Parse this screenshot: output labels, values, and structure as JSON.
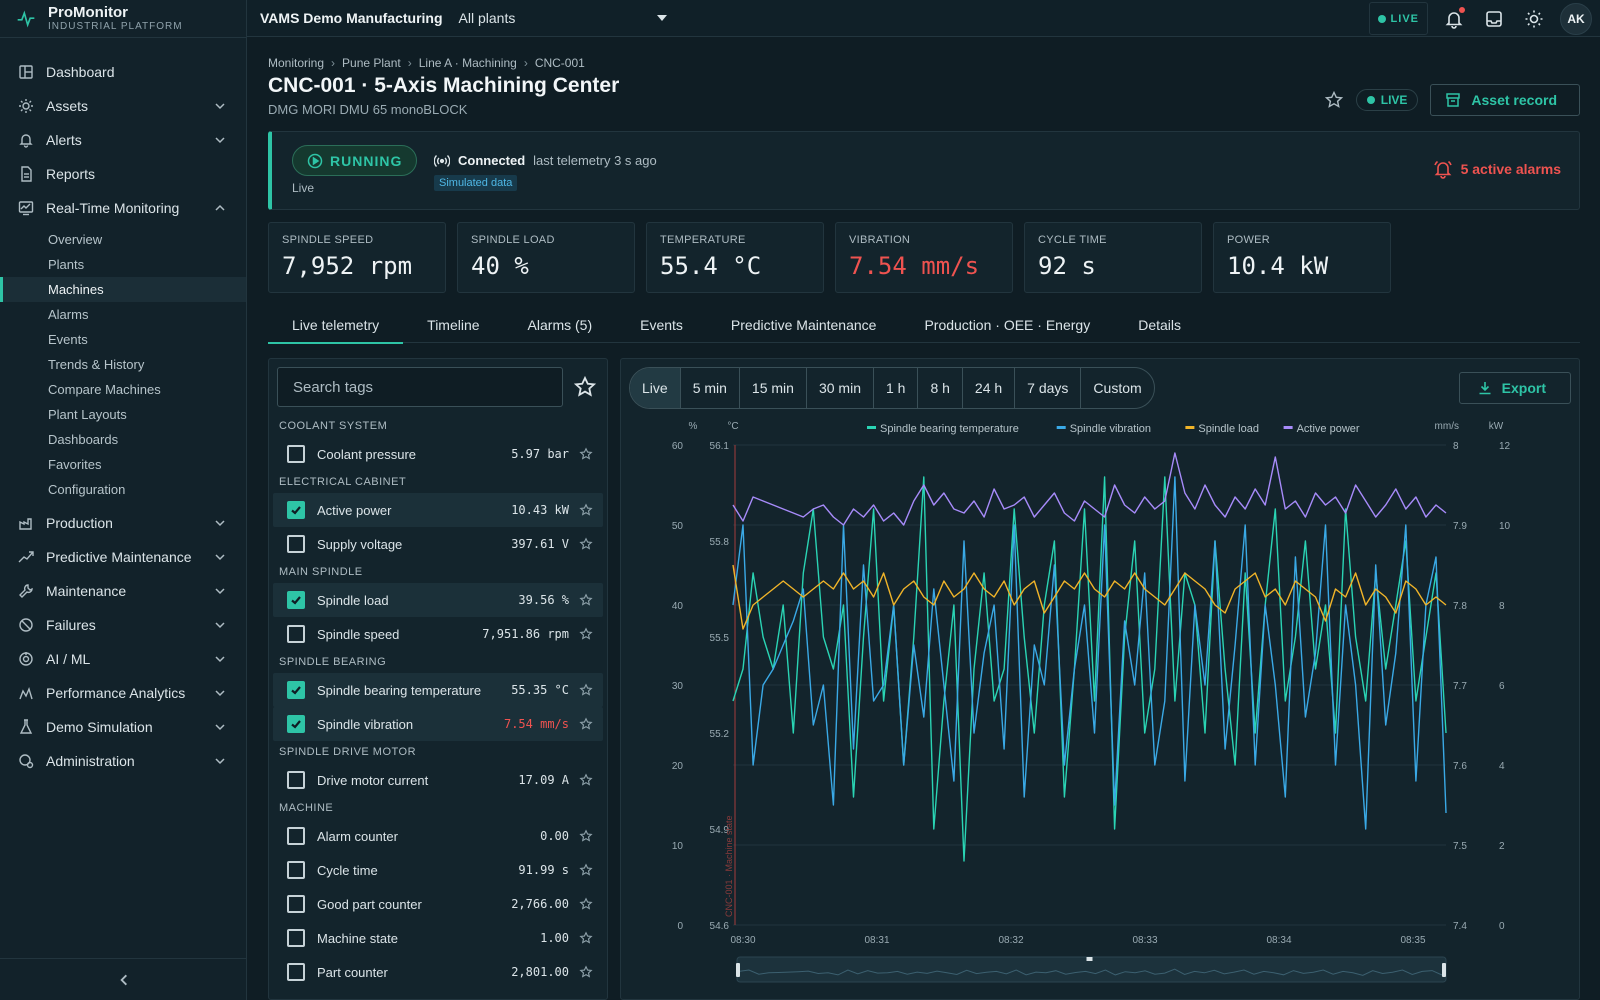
{
  "brand": {
    "title": "ProMonitor",
    "subtitle": "INDUSTRIAL PLATFORM"
  },
  "nav": [
    {
      "label": "Dashboard",
      "icon": "dashboard-icon",
      "chevron": false
    },
    {
      "label": "Assets",
      "icon": "assets-icon",
      "chevron": true
    },
    {
      "label": "Alerts",
      "icon": "bell-icon",
      "chevron": true
    },
    {
      "label": "Reports",
      "icon": "report-icon",
      "chevron": false
    },
    {
      "label": "Real-Time Monitoring",
      "icon": "monitor-icon",
      "chevron": true,
      "expanded": true
    }
  ],
  "subnav": [
    {
      "label": "Overview",
      "active": false
    },
    {
      "label": "Plants",
      "active": false
    },
    {
      "label": "Machines",
      "active": true
    },
    {
      "label": "Alarms",
      "active": false
    },
    {
      "label": "Events",
      "active": false
    },
    {
      "label": "Trends & History",
      "active": false
    },
    {
      "label": "Compare Machines",
      "active": false
    },
    {
      "label": "Plant Layouts",
      "active": false
    },
    {
      "label": "Dashboards",
      "active": false
    },
    {
      "label": "Favorites",
      "active": false
    },
    {
      "label": "Configuration",
      "active": false
    }
  ],
  "nav_bottom": [
    {
      "label": "Production",
      "icon": "production-icon"
    },
    {
      "label": "Predictive Maintenance",
      "icon": "trend-icon"
    },
    {
      "label": "Maintenance",
      "icon": "wrench-icon"
    },
    {
      "label": "Failures",
      "icon": "failure-icon"
    },
    {
      "label": "AI / ML",
      "icon": "ai-icon"
    },
    {
      "label": "Performance Analytics",
      "icon": "analytics-icon"
    },
    {
      "label": "Demo Simulation",
      "icon": "flask-icon"
    },
    {
      "label": "Administration",
      "icon": "admin-icon"
    }
  ],
  "topbar": {
    "org": "VAMS Demo Manufacturing",
    "plant": "All plants",
    "live": "LIVE",
    "avatar": "AK"
  },
  "breadcrumb": [
    "Monitoring",
    "Pune Plant",
    "Line A · Machining",
    "CNC-001"
  ],
  "page": {
    "title": "CNC-001 · 5-Axis Machining Center",
    "subtitle": "DMG MORI DMU 65 monoBLOCK",
    "live": "LIVE",
    "asset_button": "Asset record"
  },
  "status": {
    "state": "RUNNING",
    "mode": "Live",
    "connection": "Connected",
    "telemetry": "last telemetry 3 s ago",
    "sim": "Simulated data",
    "alarms": "5 active alarms"
  },
  "kpis": [
    {
      "label": "SPINDLE SPEED",
      "value": "7,952 rpm",
      "alert": false
    },
    {
      "label": "SPINDLE LOAD",
      "value": "40 %",
      "alert": false
    },
    {
      "label": "TEMPERATURE",
      "value": "55.4 °C",
      "alert": false
    },
    {
      "label": "VIBRATION",
      "value": "7.54 mm/s",
      "alert": true
    },
    {
      "label": "CYCLE TIME",
      "value": "92 s",
      "alert": false
    },
    {
      "label": "POWER",
      "value": "10.4 kW",
      "alert": false
    }
  ],
  "tabs": [
    {
      "label": "Live telemetry",
      "active": true
    },
    {
      "label": "Timeline"
    },
    {
      "label": "Alarms (5)"
    },
    {
      "label": "Events"
    },
    {
      "label": "Predictive Maintenance"
    },
    {
      "label": "Production · OEE · Energy"
    },
    {
      "label": "Details"
    }
  ],
  "search": {
    "placeholder": "Search tags"
  },
  "tag_groups": [
    {
      "title": "COOLANT SYSTEM",
      "tags": [
        {
          "name": "Coolant pressure",
          "value": "5.97 bar",
          "checked": false
        }
      ]
    },
    {
      "title": "ELECTRICAL CABINET",
      "tags": [
        {
          "name": "Active power",
          "value": "10.43 kW",
          "checked": true
        },
        {
          "name": "Supply voltage",
          "value": "397.61 V",
          "checked": false
        }
      ]
    },
    {
      "title": "MAIN SPINDLE",
      "tags": [
        {
          "name": "Spindle load",
          "value": "39.56 %",
          "checked": true
        },
        {
          "name": "Spindle speed",
          "value": "7,951.86 rpm",
          "checked": false
        }
      ]
    },
    {
      "title": "SPINDLE BEARING",
      "tags": [
        {
          "name": "Spindle bearing temperature",
          "value": "55.35 °C",
          "checked": true
        },
        {
          "name": "Spindle vibration",
          "value": "7.54 mm/s",
          "checked": true,
          "alert": true
        }
      ]
    },
    {
      "title": "SPINDLE DRIVE MOTOR",
      "tags": [
        {
          "name": "Drive motor current",
          "value": "17.09 A",
          "checked": false
        }
      ]
    },
    {
      "title": "MACHINE",
      "tags": [
        {
          "name": "Alarm counter",
          "value": "0.00",
          "checked": false
        },
        {
          "name": "Cycle time",
          "value": "91.99 s",
          "checked": false
        },
        {
          "name": "Good part counter",
          "value": "2,766.00",
          "checked": false
        },
        {
          "name": "Machine state",
          "value": "1.00",
          "checked": false
        },
        {
          "name": "Part counter",
          "value": "2,801.00",
          "checked": false
        }
      ]
    }
  ],
  "ranges": [
    {
      "label": "Live",
      "active": true
    },
    {
      "label": "5 min"
    },
    {
      "label": "15 min"
    },
    {
      "label": "30 min"
    },
    {
      "label": "1 h"
    },
    {
      "label": "8 h"
    },
    {
      "label": "24 h"
    },
    {
      "label": "7 days"
    },
    {
      "label": "Custom"
    }
  ],
  "export_label": "Export",
  "chart_data": {
    "type": "line",
    "legend_position": "top-center",
    "x_ticks": [
      "08:30",
      "08:31",
      "08:32",
      "08:33",
      "08:34",
      "08:35"
    ],
    "axes": {
      "pct": {
        "unit": "%",
        "range": [
          0,
          60
        ],
        "ticks": [
          0,
          10,
          20,
          30,
          40,
          50,
          60
        ]
      },
      "temp": {
        "unit": "°C",
        "range": [
          54.6,
          56.1
        ],
        "ticks": [
          54.6,
          54.9,
          55.2,
          55.5,
          55.8,
          56.1
        ]
      },
      "vib": {
        "unit": "mm/s",
        "range": [
          7.4,
          8
        ],
        "ticks": [
          7.4,
          7.5,
          7.6,
          7.7,
          7.8,
          7.9,
          8
        ]
      },
      "power": {
        "unit": "kW",
        "range": [
          0,
          12
        ],
        "ticks": [
          0,
          2,
          4,
          6,
          8,
          10,
          12
        ]
      }
    },
    "machine_state_label": "CNC-001 · Machine state",
    "series": [
      {
        "name": "Spindle bearing temperature",
        "color": "#2ad4b4",
        "axis": "temp",
        "values": [
          55.3,
          55.4,
          55.7,
          55.5,
          55.4,
          55.6,
          55.2,
          55.7,
          55.9,
          55.5,
          55.4,
          55.6,
          55.0,
          55.5,
          55.9,
          55.3,
          55.6,
          55.1,
          55.5,
          56.0,
          54.9,
          55.3,
          55.6,
          54.8,
          55.4,
          55.7,
          55.3,
          55.4,
          55.9,
          55.5,
          55.2,
          55.6,
          55.8,
          55.0,
          55.4,
          55.9,
          55.3,
          56.0,
          54.9,
          55.5,
          55.8,
          55.2,
          55.4,
          56.0,
          55.3,
          55.7,
          55.6,
          55.2,
          55.8,
          55.4,
          55.1,
          55.7,
          55.2,
          55.6,
          55.9,
          55.3,
          55.5,
          55.8,
          55.4,
          55.6,
          55.2,
          55.9,
          55.5,
          55.3,
          55.7,
          55.4,
          55.6,
          55.8,
          55.3,
          55.5,
          55.7,
          55.2
        ]
      },
      {
        "name": "Spindle vibration",
        "color": "#3aa9e6",
        "axis": "vib",
        "values": [
          7.8,
          7.9,
          7.6,
          7.7,
          7.72,
          7.75,
          7.78,
          7.82,
          7.65,
          7.7,
          7.55,
          7.9,
          7.62,
          7.85,
          7.68,
          7.7,
          7.8,
          7.6,
          7.75,
          7.66,
          7.82,
          7.7,
          7.58,
          7.88,
          7.64,
          7.74,
          7.8,
          7.62,
          7.9,
          7.56,
          7.75,
          7.7,
          7.85,
          7.6,
          7.72,
          7.8,
          7.64,
          7.9,
          7.55,
          7.78,
          7.7,
          7.84,
          7.6,
          7.68,
          7.96,
          7.58,
          7.8,
          7.7,
          7.88,
          7.62,
          7.75,
          7.9,
          7.6,
          7.8,
          7.7,
          7.56,
          7.86,
          7.66,
          7.74,
          7.9,
          7.6,
          7.8,
          7.7,
          7.52,
          7.85,
          7.65,
          7.74,
          7.9,
          7.58,
          7.8,
          7.86,
          7.54
        ]
      },
      {
        "name": "Spindle load",
        "color": "#f0b429",
        "axis": "pct",
        "values": [
          45,
          37,
          40,
          41,
          42,
          43,
          42,
          41,
          42,
          43,
          42,
          44,
          42,
          43,
          41,
          44,
          40,
          42,
          43,
          41,
          40,
          43,
          41,
          42,
          44,
          42,
          41,
          43,
          40,
          42,
          43,
          39,
          41,
          43,
          42,
          44,
          42,
          41,
          43,
          42,
          44,
          42,
          41,
          40,
          42,
          44,
          43,
          42,
          40,
          39,
          42,
          43,
          44,
          41,
          42,
          40,
          43,
          42,
          41,
          38,
          42,
          41,
          44,
          40,
          42,
          41,
          39,
          43,
          42,
          40,
          41,
          40
        ]
      },
      {
        "name": "Active power",
        "color": "#a78bfa",
        "axis": "power",
        "values": [
          10.5,
          10.1,
          10.7,
          10.6,
          10.5,
          10.4,
          10.3,
          10.2,
          10.4,
          10.5,
          10.2,
          10.0,
          10.4,
          10.2,
          10.5,
          10.1,
          10.3,
          10.0,
          10.6,
          11.0,
          10.5,
          10.8,
          10.4,
          10.3,
          10.6,
          10.2,
          10.9,
          10.4,
          10.5,
          10.7,
          10.2,
          10.5,
          10.8,
          10.3,
          10.1,
          10.6,
          10.4,
          10.2,
          11.0,
          10.5,
          10.3,
          10.7,
          10.4,
          10.6,
          11.8,
          10.8,
          10.4,
          11.0,
          10.5,
          10.2,
          10.7,
          10.4,
          10.9,
          10.5,
          11.7,
          10.4,
          10.6,
          10.2,
          10.8,
          10.5,
          10.7,
          10.3,
          11.0,
          10.6,
          10.2,
          10.5,
          10.9,
          10.4,
          10.7,
          10.2,
          10.5,
          10.3
        ]
      }
    ]
  }
}
